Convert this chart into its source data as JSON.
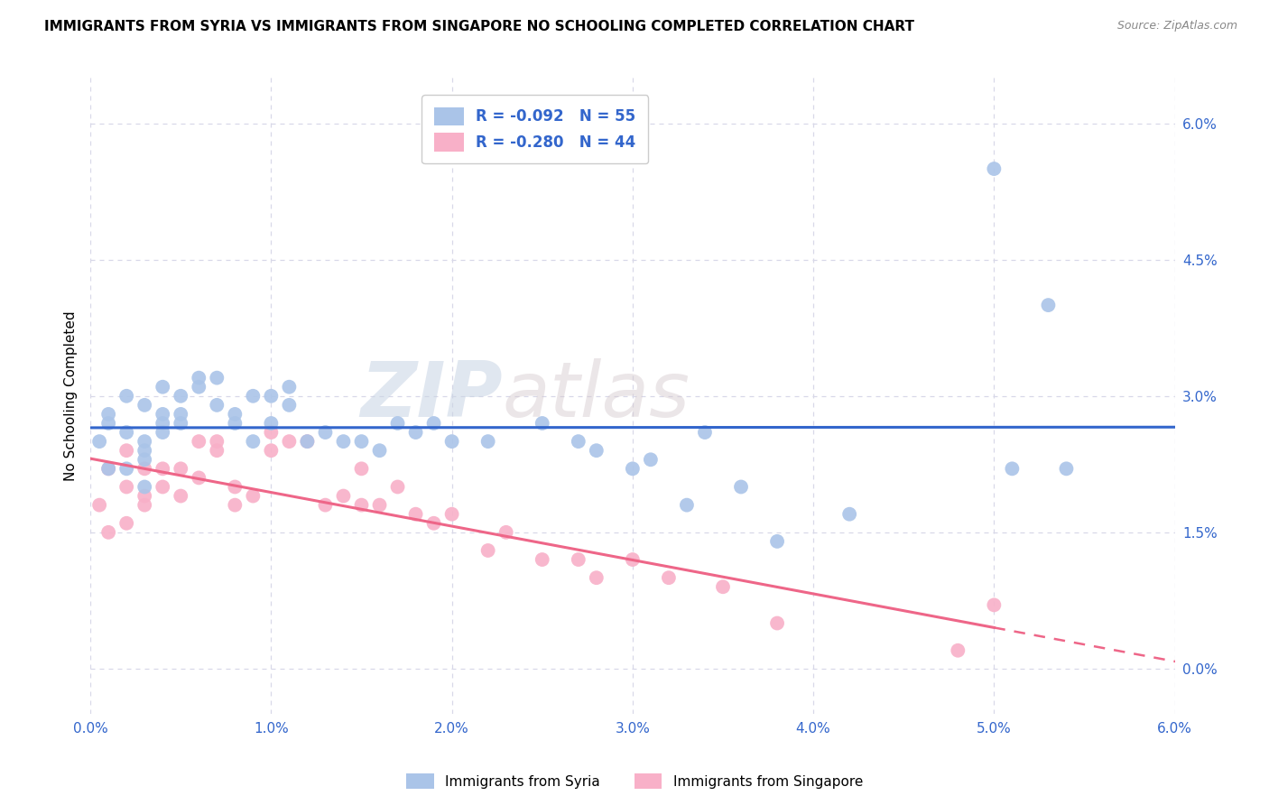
{
  "title": "IMMIGRANTS FROM SYRIA VS IMMIGRANTS FROM SINGAPORE NO SCHOOLING COMPLETED CORRELATION CHART",
  "source": "Source: ZipAtlas.com",
  "ylabel": "No Schooling Completed",
  "xlim": [
    0.0,
    0.06
  ],
  "ylim": [
    -0.005,
    0.065
  ],
  "xticks": [
    0.0,
    0.01,
    0.02,
    0.03,
    0.04,
    0.05,
    0.06
  ],
  "yticks_right": [
    0.0,
    0.015,
    0.03,
    0.045,
    0.06
  ],
  "ytick_labels_right": [
    "0.0%",
    "1.5%",
    "3.0%",
    "4.5%",
    "6.0%"
  ],
  "xtick_labels": [
    "0.0%",
    "1.0%",
    "2.0%",
    "3.0%",
    "4.0%",
    "5.0%",
    "6.0%"
  ],
  "background_color": "#ffffff",
  "grid_color": "#d8d8e8",
  "syria_color": "#aac4e8",
  "singapore_color": "#f8b0c8",
  "syria_line_color": "#3366cc",
  "singapore_line_color": "#ee6688",
  "syria_R": -0.092,
  "syria_N": 55,
  "singapore_R": -0.28,
  "singapore_N": 44,
  "legend_label_syria": "Immigrants from Syria",
  "legend_label_singapore": "Immigrants from Singapore",
  "watermark_zip": "ZIP",
  "watermark_atlas": "atlas",
  "syria_scatter_x": [
    0.0005,
    0.001,
    0.001,
    0.001,
    0.002,
    0.002,
    0.002,
    0.003,
    0.003,
    0.003,
    0.003,
    0.003,
    0.004,
    0.004,
    0.004,
    0.004,
    0.005,
    0.005,
    0.005,
    0.006,
    0.006,
    0.007,
    0.007,
    0.008,
    0.008,
    0.009,
    0.009,
    0.01,
    0.01,
    0.011,
    0.011,
    0.012,
    0.013,
    0.014,
    0.015,
    0.016,
    0.017,
    0.018,
    0.019,
    0.02,
    0.022,
    0.025,
    0.027,
    0.028,
    0.03,
    0.031,
    0.033,
    0.034,
    0.036,
    0.038,
    0.042,
    0.05,
    0.051,
    0.053,
    0.054
  ],
  "syria_scatter_y": [
    0.025,
    0.027,
    0.022,
    0.028,
    0.03,
    0.026,
    0.022,
    0.029,
    0.025,
    0.024,
    0.023,
    0.02,
    0.028,
    0.027,
    0.026,
    0.031,
    0.03,
    0.028,
    0.027,
    0.032,
    0.031,
    0.032,
    0.029,
    0.028,
    0.027,
    0.025,
    0.03,
    0.03,
    0.027,
    0.031,
    0.029,
    0.025,
    0.026,
    0.025,
    0.025,
    0.024,
    0.027,
    0.026,
    0.027,
    0.025,
    0.025,
    0.027,
    0.025,
    0.024,
    0.022,
    0.023,
    0.018,
    0.026,
    0.02,
    0.014,
    0.017,
    0.055,
    0.022,
    0.04,
    0.022
  ],
  "singapore_scatter_x": [
    0.0005,
    0.001,
    0.001,
    0.002,
    0.002,
    0.002,
    0.003,
    0.003,
    0.003,
    0.004,
    0.004,
    0.005,
    0.005,
    0.006,
    0.006,
    0.007,
    0.007,
    0.008,
    0.008,
    0.009,
    0.01,
    0.01,
    0.011,
    0.012,
    0.013,
    0.014,
    0.015,
    0.015,
    0.016,
    0.017,
    0.018,
    0.019,
    0.02,
    0.022,
    0.023,
    0.025,
    0.027,
    0.028,
    0.03,
    0.032,
    0.035,
    0.038,
    0.048,
    0.05
  ],
  "singapore_scatter_y": [
    0.018,
    0.022,
    0.015,
    0.02,
    0.024,
    0.016,
    0.022,
    0.019,
    0.018,
    0.022,
    0.02,
    0.022,
    0.019,
    0.025,
    0.021,
    0.025,
    0.024,
    0.02,
    0.018,
    0.019,
    0.026,
    0.024,
    0.025,
    0.025,
    0.018,
    0.019,
    0.022,
    0.018,
    0.018,
    0.02,
    0.017,
    0.016,
    0.017,
    0.013,
    0.015,
    0.012,
    0.012,
    0.01,
    0.012,
    0.01,
    0.009,
    0.005,
    0.002,
    0.007
  ]
}
